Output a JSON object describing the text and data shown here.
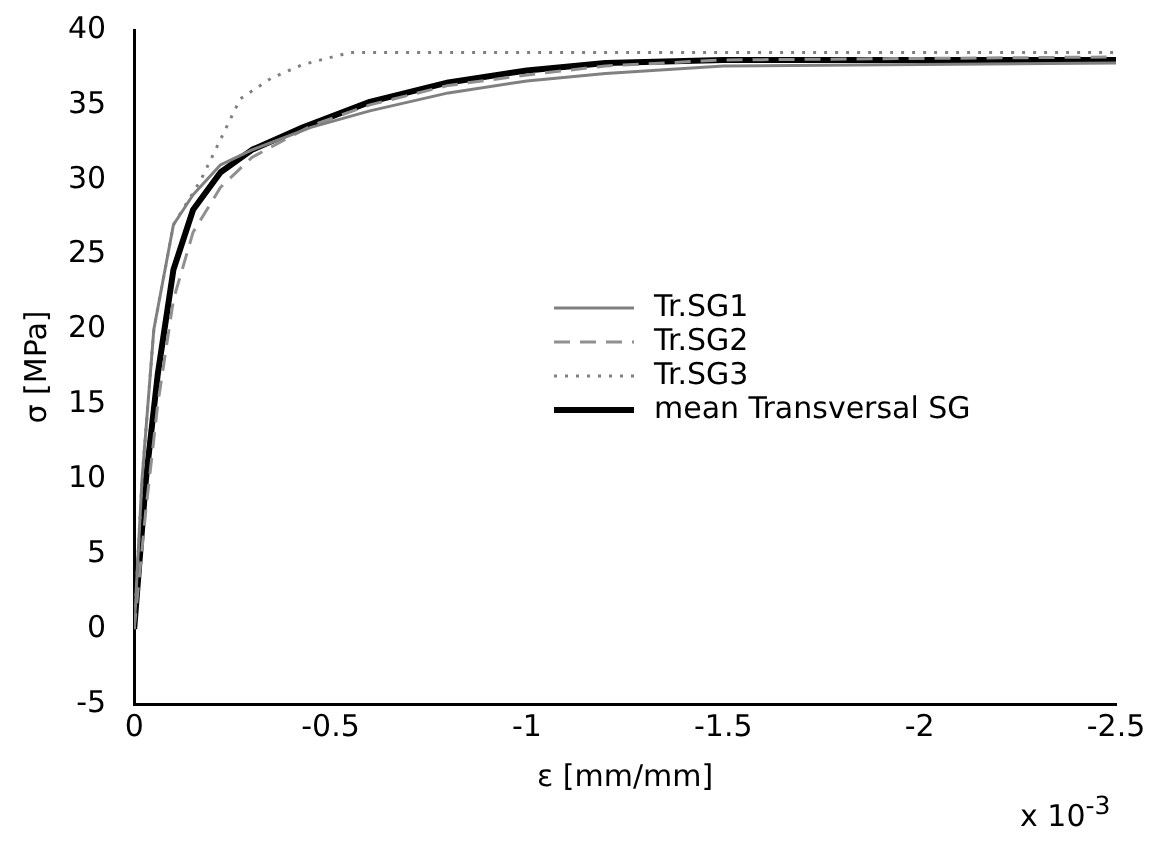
{
  "chart_data": {
    "type": "line",
    "xlabel": "ε [mm/mm]",
    "ylabel": "σ [MPa]",
    "annotations": [
      "x 10$^{-3}$"
    ],
    "xlim": [
      0,
      -2.5
    ],
    "xticks": [
      0,
      -0.5,
      -1,
      -1.5,
      -2,
      -2.5
    ],
    "ylim": [
      -5,
      40
    ],
    "yticks": [
      -5,
      0,
      5,
      10,
      15,
      20,
      25,
      30,
      35,
      40
    ],
    "grid": false,
    "legend": "right",
    "marker": "none",
    "series": [
      {
        "name": "Tr.SG1",
        "color": "#808080",
        "line_style": "solid",
        "x": [
          0,
          -0.02,
          -0.05,
          -0.1,
          -0.15,
          -0.22,
          -0.3,
          -0.45,
          -0.6,
          -0.8,
          -1,
          -1.2,
          -1.5,
          -2.5
        ],
        "values": [
          0,
          10,
          20,
          27,
          29,
          31,
          32,
          33.5,
          34.6,
          35.8,
          36.6,
          37.1,
          37.6,
          37.8
        ]
      },
      {
        "name": "Tr.SG2",
        "color": "#909090",
        "line_style": "dashed",
        "x": [
          0,
          -0.03,
          -0.06,
          -0.1,
          -0.15,
          -0.22,
          -0.3,
          -0.45,
          -0.6,
          -0.8,
          -1,
          -1.2,
          -1.5,
          -2.5
        ],
        "values": [
          0,
          8,
          15,
          22,
          26.5,
          29.5,
          31.5,
          33.6,
          35,
          36.3,
          37,
          37.6,
          38,
          38.2
        ]
      },
      {
        "name": "Tr.SG3",
        "color": "#808080",
        "line_style": "dotted",
        "x": [
          0,
          -0.02,
          -0.05,
          -0.1,
          -0.17,
          -0.27,
          -0.35,
          -0.43,
          -0.55,
          -2.5
        ],
        "values": [
          0,
          10,
          20,
          27,
          30,
          35.4,
          36.8,
          37.7,
          38.5,
          38.5
        ]
      },
      {
        "name": "mean Transversal SG",
        "color": "#000000",
        "line_style": "solid",
        "x": [
          0,
          -0.03,
          -0.06,
          -0.1,
          -0.15,
          -0.22,
          -0.3,
          -0.43,
          -0.6,
          -0.8,
          -1,
          -1.2,
          -1.5,
          -2.5
        ],
        "values": [
          0,
          10,
          17,
          24,
          28,
          30.5,
          32,
          33.5,
          35.2,
          36.5,
          37.3,
          37.8,
          38,
          38
        ]
      }
    ]
  }
}
